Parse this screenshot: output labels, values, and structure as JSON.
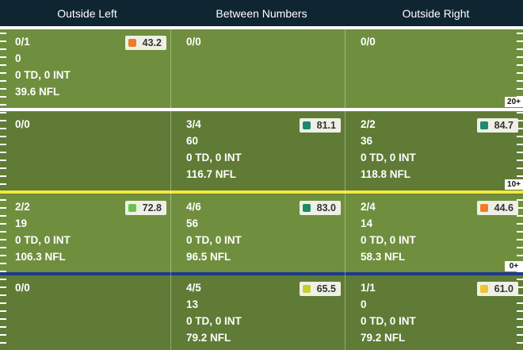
{
  "columns": [
    "Outside Left",
    "Between Numbers",
    "Outside Right"
  ],
  "colors": {
    "header_bg": "#0f2532",
    "field_light": "#6f8f3e",
    "field_dark": "#5f7b35",
    "line_white": "#ffffff",
    "line_yellow": "#f4e83a",
    "line_blue": "#1f3a8a",
    "grade_orange": "#f07b2a",
    "grade_teal": "#1f8a6a",
    "grade_green": "#6cc24a",
    "grade_lime": "#c6cf2a",
    "grade_yellow": "#f2c12e"
  },
  "yard_markers": [
    "20+",
    "10+",
    "0+"
  ],
  "rows": [
    {
      "cells": [
        {
          "lines": [
            "0/1",
            "0",
            "0 TD, 0 INT",
            "39.6 NFL"
          ],
          "grade": "43.2",
          "grade_color": "#f07b2a"
        },
        {
          "lines": [
            "0/0"
          ],
          "grade": null,
          "grade_color": null
        },
        {
          "lines": [
            "0/0"
          ],
          "grade": null,
          "grade_color": null
        }
      ]
    },
    {
      "cells": [
        {
          "lines": [
            "0/0"
          ],
          "grade": null,
          "grade_color": null
        },
        {
          "lines": [
            "3/4",
            "60",
            "0 TD, 0 INT",
            "116.7 NFL"
          ],
          "grade": "81.1",
          "grade_color": "#1f8a6a"
        },
        {
          "lines": [
            "2/2",
            "36",
            "0 TD, 0 INT",
            "118.8 NFL"
          ],
          "grade": "84.7",
          "grade_color": "#1f8a6a"
        }
      ]
    },
    {
      "cells": [
        {
          "lines": [
            "2/2",
            "19",
            "0 TD, 0 INT",
            "106.3 NFL"
          ],
          "grade": "72.8",
          "grade_color": "#6cc24a"
        },
        {
          "lines": [
            "4/6",
            "56",
            "0 TD, 0 INT",
            "96.5 NFL"
          ],
          "grade": "83.0",
          "grade_color": "#1f8a6a"
        },
        {
          "lines": [
            "2/4",
            "14",
            "0 TD, 0 INT",
            "58.3 NFL"
          ],
          "grade": "44.6",
          "grade_color": "#f07b2a"
        }
      ]
    },
    {
      "cells": [
        {
          "lines": [
            "0/0"
          ],
          "grade": null,
          "grade_color": null
        },
        {
          "lines": [
            "4/5",
            "13",
            "0 TD, 0 INT",
            "79.2 NFL"
          ],
          "grade": "65.5",
          "grade_color": "#c6cf2a"
        },
        {
          "lines": [
            "1/1",
            "0",
            "0 TD, 0 INT",
            "79.2 NFL"
          ],
          "grade": "61.0",
          "grade_color": "#f2c12e"
        }
      ]
    }
  ]
}
